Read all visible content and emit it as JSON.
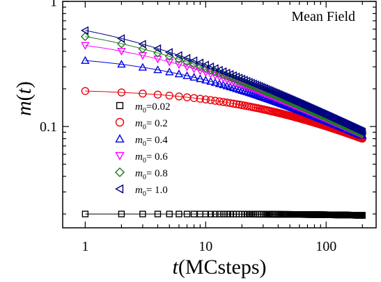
{
  "chart_data": {
    "type": "scatter",
    "title": "",
    "annotation": "Mean Field",
    "xlabel": {
      "italic": "t",
      "rest": "(MCsteps)"
    },
    "ylabel": {
      "italic": "m",
      "rest": "(",
      "italic2": "t",
      "end": ")"
    },
    "xscale": "log",
    "yscale": "log",
    "xlim": [
      0.65,
      260
    ],
    "ylim": [
      0.0155,
      1.0
    ],
    "xticks": [
      1,
      10,
      100
    ],
    "xtick_labels": [
      "1",
      "10",
      "100"
    ],
    "yticks": [
      0.1,
      1
    ],
    "ytick_labels": [
      "0.1",
      "1"
    ],
    "grid": false,
    "legend_position": "center-left",
    "tmax": 200,
    "series": [
      {
        "name_sym": "m",
        "name_sub": "0",
        "name_val": "=0.02",
        "marker": "square",
        "color": "#000000",
        "m0": 0.02,
        "m_end": 0.0195,
        "tau": 300,
        "p": 1.0
      },
      {
        "name_sym": "m",
        "name_sub": "0",
        "name_val": "= 0.2",
        "marker": "circle",
        "color": "#e8000b",
        "m0": 0.2,
        "m_end": 0.08,
        "tau": 35,
        "p": 0.75
      },
      {
        "name_sym": "m",
        "name_sub": "0",
        "name_val": "= 0.4",
        "marker": "triangle-up",
        "color": "#0000dd",
        "m0": 0.38,
        "m_end": 0.085,
        "tau": 7,
        "p": 0.75
      },
      {
        "name_sym": "m",
        "name_sub": "0",
        "name_val": "= 0.6",
        "marker": "triangle-down",
        "color": "#ff00ff",
        "m0": 0.55,
        "m_end": 0.087,
        "tau": 3.5,
        "p": 0.72
      },
      {
        "name_sym": "m",
        "name_sub": "0",
        "name_val": "= 0.8",
        "marker": "diamond",
        "color": "#1f7a1f",
        "m0": 0.7,
        "m_end": 0.088,
        "tau": 2.3,
        "p": 0.7
      },
      {
        "name_sym": "m",
        "name_sub": "0",
        "name_val": "= 1.0",
        "marker": "triangle-left",
        "color": "#000080",
        "m0": 0.82,
        "m_end": 0.09,
        "tau": 1.8,
        "p": 0.7
      }
    ]
  }
}
